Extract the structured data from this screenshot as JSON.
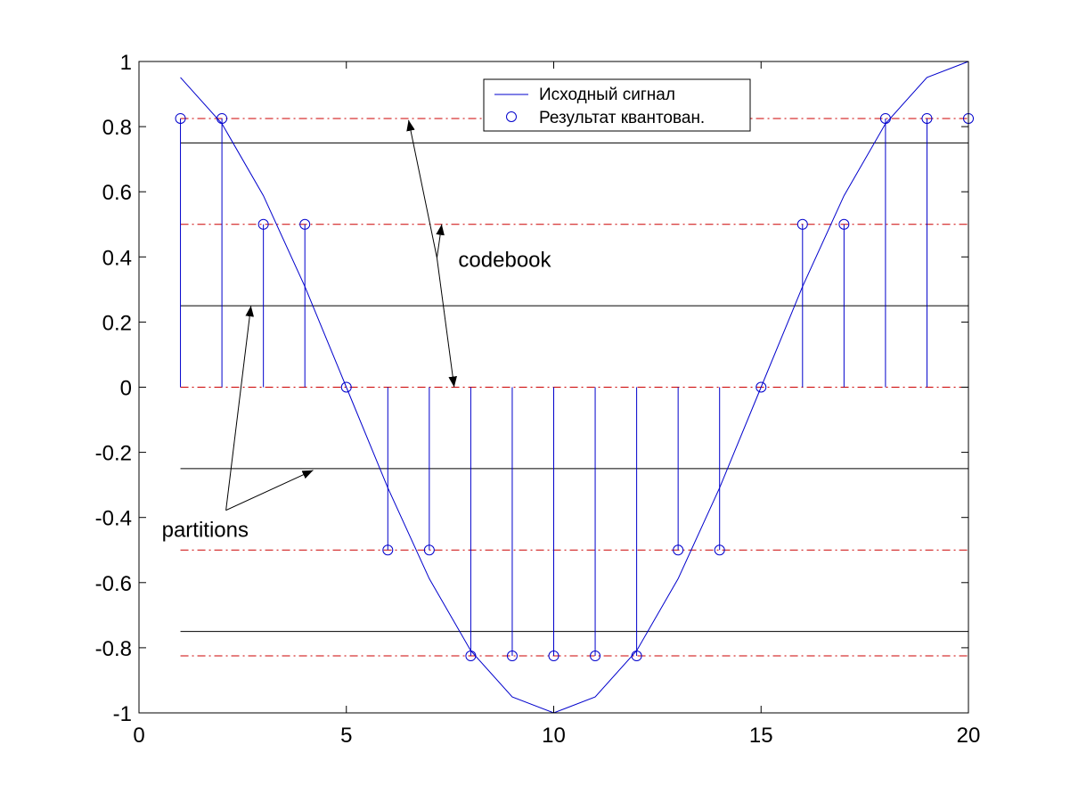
{
  "chart_data": {
    "type": "line",
    "xlim": [
      0,
      20
    ],
    "ylim": [
      -1,
      1
    ],
    "x_ticks": [
      "0",
      "5",
      "10",
      "15",
      "20"
    ],
    "y_ticks": [
      "1",
      "0.8",
      "0.6",
      "0.4",
      "0.2",
      "0",
      "-0.2",
      "-0.4",
      "-0.6",
      "-0.8",
      "-1"
    ],
    "grid": false,
    "legend_position": "top-right",
    "series": [
      {
        "name": "Исходный сигнал",
        "style": "line",
        "color": "#0000cc",
        "x": [
          1,
          2,
          3,
          4,
          5,
          6,
          7,
          8,
          9,
          10,
          11,
          12,
          13,
          14,
          15,
          16,
          17,
          18,
          19,
          20
        ],
        "y": [
          0.951,
          0.809,
          0.588,
          0.309,
          0.0,
          -0.309,
          -0.588,
          -0.809,
          -0.951,
          -1.0,
          -0.951,
          -0.809,
          -0.588,
          -0.309,
          0.0,
          0.309,
          0.588,
          0.809,
          0.951,
          1.0
        ]
      },
      {
        "name": "Результат квантован.",
        "style": "stem",
        "color": "#0000cc",
        "x": [
          1,
          2,
          3,
          4,
          5,
          6,
          7,
          8,
          9,
          10,
          11,
          12,
          13,
          14,
          15,
          16,
          17,
          18,
          19,
          20
        ],
        "y": [
          0.825,
          0.825,
          0.5,
          0.5,
          0.0,
          -0.5,
          -0.5,
          -0.825,
          -0.825,
          -0.825,
          -0.825,
          -0.825,
          -0.5,
          -0.5,
          0.0,
          0.5,
          0.5,
          0.825,
          0.825,
          0.825
        ]
      }
    ],
    "codebook_levels": [
      0.825,
      0.5,
      0.0,
      -0.5,
      -0.825
    ],
    "partition_levels": [
      0.75,
      0.25,
      -0.25,
      -0.75
    ],
    "codebook_color": "#cc0000",
    "partition_color": "#000000",
    "annotations": [
      {
        "text": "codebook",
        "x": 7.7,
        "y": 0.37,
        "targets": [
          [
            6.5,
            0.82
          ],
          [
            7.3,
            0.5
          ],
          [
            7.6,
            0.0
          ]
        ]
      },
      {
        "text": "partitions",
        "x": 0.55,
        "y": -0.46,
        "targets": [
          [
            2.7,
            0.25
          ],
          [
            4.2,
            -0.255
          ]
        ]
      }
    ]
  }
}
